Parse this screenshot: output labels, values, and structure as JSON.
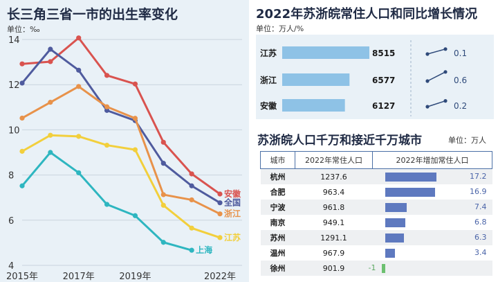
{
  "left": {
    "title": "长三角三省一市的出生率变化",
    "unit": "单位：‰"
  },
  "chart_data": [
    {
      "type": "line",
      "title": "长三角三省一市的出生率变化",
      "unit": "单位：‰",
      "x": [
        2015,
        2016,
        2017,
        2018,
        2019,
        2020,
        2021,
        2022
      ],
      "x_tick_labels": [
        "2015年",
        "2017年",
        "2019年",
        "2022年"
      ],
      "ylim": [
        4,
        14
      ],
      "y_ticks": [
        4,
        6,
        8,
        10,
        12,
        14
      ],
      "grid": true,
      "series": [
        {
          "name": "安徽",
          "color": "#d9534f",
          "values": [
            12.92,
            13.02,
            14.07,
            12.41,
            12.03,
            9.45,
            8.05,
            7.16
          ]
        },
        {
          "name": "全国",
          "color": "#4f5b9e",
          "values": [
            12.07,
            13.57,
            12.64,
            10.86,
            10.41,
            8.52,
            7.52,
            6.77
          ]
        },
        {
          "name": "浙江",
          "color": "#e8924a",
          "values": [
            10.52,
            11.22,
            11.92,
            11.02,
            10.51,
            7.13,
            6.9,
            6.28
          ]
        },
        {
          "name": "江苏",
          "color": "#f2cf3c",
          "values": [
            9.05,
            9.76,
            9.71,
            9.32,
            9.12,
            6.66,
            5.65,
            5.23
          ]
        },
        {
          "name": "上海",
          "color": "#2eb6c0",
          "values": [
            7.52,
            9.0,
            8.1,
            6.7,
            6.2,
            5.02,
            4.67,
            null
          ]
        }
      ]
    },
    {
      "type": "bar",
      "title": "2022年苏浙皖常住人口和同比增长情况",
      "unit": "单位：万人/%",
      "categories": [
        "江苏",
        "浙江",
        "安徽"
      ],
      "series": [
        {
          "name": "常住人口",
          "values": [
            8515,
            6577,
            6127
          ]
        },
        {
          "name": "同比增长",
          "values": [
            0.1,
            0.6,
            0.2
          ]
        }
      ]
    },
    {
      "type": "table",
      "title": "苏浙皖人口千万和接近千万城市",
      "unit": "单位：万人",
      "columns": [
        "城市",
        "2022年常住人口",
        "2022年增加常住人口"
      ],
      "rows": [
        [
          "杭州",
          1237.6,
          17.2
        ],
        [
          "合肥",
          963.4,
          16.9
        ],
        [
          "宁波",
          961.8,
          7.4
        ],
        [
          "南京",
          949.1,
          6.8
        ],
        [
          "苏州",
          1291.1,
          6.3
        ],
        [
          "温州",
          967.9,
          3.4
        ],
        [
          "徐州",
          901.9,
          -1
        ]
      ]
    }
  ],
  "pop": {
    "title": "2022年苏浙皖常住人口和同比增长情况",
    "unit": "单位：万人/%",
    "bar_color": "#8ec2e6",
    "rows": [
      {
        "province": "江苏",
        "population": "8515",
        "pop_value": 8515,
        "growth": "0.1",
        "growth_value": 0.1
      },
      {
        "province": "浙江",
        "population": "6577",
        "pop_value": 6577,
        "growth": "0.6",
        "growth_value": 0.6
      },
      {
        "province": "安徽",
        "population": "6127",
        "pop_value": 6127,
        "growth": "0.2",
        "growth_value": 0.2
      }
    ]
  },
  "cities": {
    "title": "苏浙皖人口千万和接近千万城市",
    "unit": "单位：万人",
    "headers": [
      "城市",
      "2022年常住人口",
      "2022年增加常住人口"
    ],
    "bar_color": "#5e79bf",
    "neg_color": "#6cc070",
    "rows": [
      {
        "city": "杭州",
        "pop": "1237.6",
        "inc": "17.2",
        "inc_value": 17.2
      },
      {
        "city": "合肥",
        "pop": "963.4",
        "inc": "16.9",
        "inc_value": 16.9
      },
      {
        "city": "宁波",
        "pop": "961.8",
        "inc": "7.4",
        "inc_value": 7.4
      },
      {
        "city": "南京",
        "pop": "949.1",
        "inc": "6.8",
        "inc_value": 6.8
      },
      {
        "city": "苏州",
        "pop": "1291.1",
        "inc": "6.3",
        "inc_value": 6.3
      },
      {
        "city": "温州",
        "pop": "967.9",
        "inc": "3.4",
        "inc_value": 3.4
      },
      {
        "city": "徐州",
        "pop": "901.9",
        "inc": "-1",
        "inc_value": -1
      }
    ]
  }
}
